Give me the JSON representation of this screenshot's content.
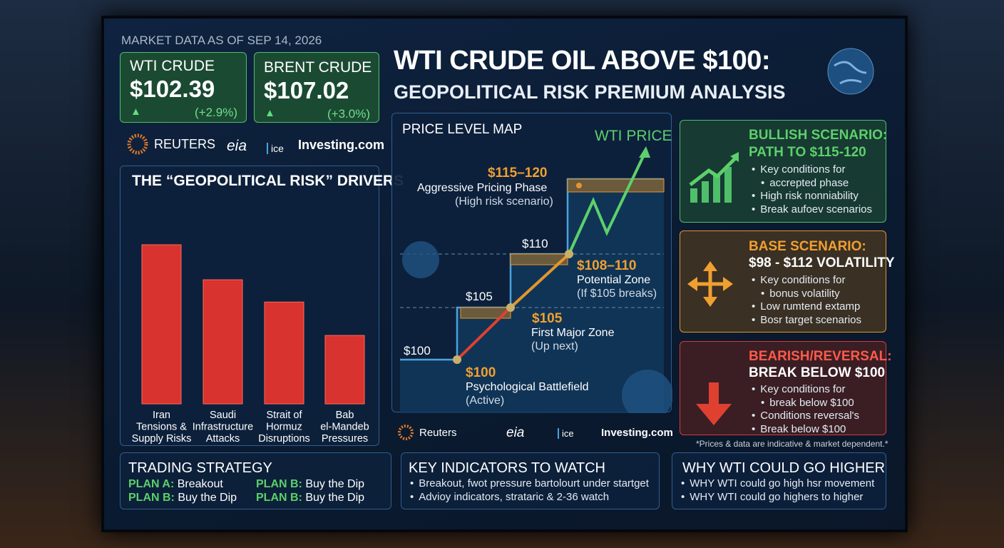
{
  "header": {
    "as_of": "MARKET DATA AS OF SEP 14, 2026",
    "title": "WTI CRUDE OIL ABOVE $100:",
    "subtitle": "GEOPOLITICAL RISK PREMIUM ANALYSIS"
  },
  "quotes": [
    {
      "name": "WTI CRUDE",
      "price": "$102.39",
      "change": "(+2.9%)"
    },
    {
      "name": "BRENT CRUDE",
      "price": "$107.02",
      "change": "(+3.0%)"
    }
  ],
  "sources": [
    "REUTERS",
    "eia",
    "ice",
    "Investing.com"
  ],
  "drivers": {
    "title": "THE “GEOPOLITICAL RISK” DRIVERS",
    "categories": [
      [
        "Iran",
        "Tensions &",
        "Supply Risks"
      ],
      [
        "Saudi",
        "Infrastructure",
        "Attacks"
      ],
      [
        "Strait of",
        "Hormuz",
        "Disruptions"
      ],
      [
        "Bab",
        "el-Mandeb",
        "Pressures"
      ]
    ],
    "values": [
      100,
      78,
      64,
      43
    ]
  },
  "price_map": {
    "title": "PRICE LEVEL MAP",
    "line_label": "WTI PRICE",
    "levels": [
      {
        "price": "$115–120",
        "name": "Aggressive Pricing Phase",
        "note": "(High risk scenario)"
      },
      {
        "price": "$108–110",
        "name": "Potential Zone",
        "note": "(If $105 breaks)"
      },
      {
        "price": "$105",
        "name": "First Major Zone",
        "note": "(Up next)"
      },
      {
        "price": "$100",
        "name": "Psychological Battlefield",
        "note": "(Active)"
      }
    ],
    "axis_labels": [
      "$100",
      "$105",
      "$110"
    ]
  },
  "scenarios": [
    {
      "title": [
        "BULLISH SCENARIO:",
        "PATH TO $115-120"
      ],
      "bullets": [
        "Key conditions for",
        "accrepted phase",
        "High risk nonniability",
        "Break aufoev scenarios"
      ]
    },
    {
      "title": [
        "BASE SCENARIO:",
        "$98 - $112 VOLATILITY"
      ],
      "bullets": [
        "Key conditions for",
        "bonus volatility",
        "Low rumtend extamp",
        "Bosr target scenarios"
      ]
    },
    {
      "title": [
        "BEARISH/REVERSAL:",
        "BREAK BELOW $100"
      ],
      "bullets": [
        "Key conditions for",
        "break below $100",
        "Conditions reversal's",
        "Break below $100"
      ]
    }
  ],
  "footnote": "*Prices & data are indicative & market dependent.*",
  "footer_sources": [
    "Reuters",
    "eia",
    "ice",
    "Investing.com"
  ],
  "trading_strategy": {
    "title": "TRADING STRATEGY",
    "plans": [
      {
        "label": "PLAN A:",
        "text": "Breakout"
      },
      {
        "label": "PLAN B:",
        "text": "Buy the Dip"
      },
      {
        "label": "PLAN B:",
        "text": "Buy the Dip"
      },
      {
        "label": "PLAN B:",
        "text": "Buy the Dip"
      }
    ]
  },
  "key_indicators": {
    "title": "KEY INDICATORS TO WATCH",
    "bullets": [
      "Breakout, fwot pressure bartolourt under startget",
      "Advioy indicators, strataric & 2-36 watch"
    ]
  },
  "why_higher": {
    "title": "WHY WTI COULD GO HIGHER",
    "bullets": [
      "WHY WTI could go high hsr movement",
      "WHY WTI could go highers to higher"
    ]
  }
}
